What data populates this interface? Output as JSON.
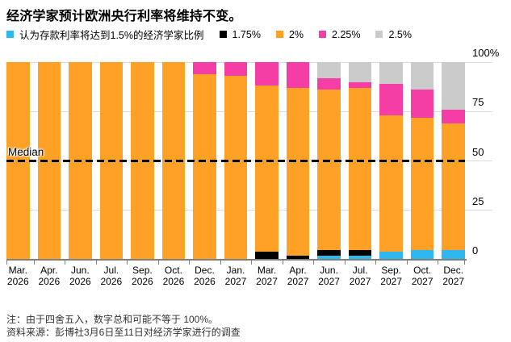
{
  "title": "经济学家预计欧洲央行利率将维持不变。",
  "legend": {
    "items": [
      {
        "name": "deposit-rate-1-5pct",
        "label": "认为存款利率将达到1.5%的经济学家比例",
        "color": "#2FB8F0"
      },
      {
        "name": "rate-1-75pct",
        "label": "1.75%",
        "color": "#000000"
      },
      {
        "name": "rate-2pct",
        "label": "2%",
        "color": "#FFA127"
      },
      {
        "name": "rate-2-25pct",
        "label": "2.25%",
        "color": "#F53EA5"
      },
      {
        "name": "rate-2-5pct",
        "label": "2.5%",
        "color": "#CBCBCB"
      }
    ]
  },
  "chart_data": {
    "type": "bar",
    "stacked": true,
    "title": "经济学家预计欧洲央行利率将维持不变。",
    "categories": [
      {
        "month": "Mar.",
        "year": "2026"
      },
      {
        "month": "Apr.",
        "year": "2026"
      },
      {
        "month": "Jun.",
        "year": "2026"
      },
      {
        "month": "Jul.",
        "year": "2026"
      },
      {
        "month": "Sep.",
        "year": "2026"
      },
      {
        "month": "Oct.",
        "year": "2026"
      },
      {
        "month": "Dec.",
        "year": "2026"
      },
      {
        "month": "Jan.",
        "year": "2027"
      },
      {
        "month": "Mar.",
        "year": "2027"
      },
      {
        "month": "Apr.",
        "year": "2027"
      },
      {
        "month": "Jun.",
        "year": "2027"
      },
      {
        "month": "Jul.",
        "year": "2027"
      },
      {
        "month": "Sep.",
        "year": "2027"
      },
      {
        "month": "Oct.",
        "year": "2027"
      },
      {
        "month": "Dec.",
        "year": "2027"
      }
    ],
    "series": [
      {
        "name": "认为存款利率将达到1.5%的经济学家比例",
        "color": "#2FB8F0",
        "values": [
          0,
          0,
          0,
          0,
          0,
          0,
          0,
          0,
          0,
          0,
          2,
          2,
          4,
          5,
          5
        ]
      },
      {
        "name": "1.75%",
        "color": "#000000",
        "values": [
          0,
          0,
          0,
          0,
          0,
          0,
          0,
          0,
          4,
          2,
          3,
          3,
          0,
          0,
          0
        ]
      },
      {
        "name": "2%",
        "color": "#FFA127",
        "values": [
          100,
          100,
          100,
          100,
          100,
          100,
          94,
          93,
          84,
          85,
          81,
          82,
          69,
          67,
          64
        ]
      },
      {
        "name": "2.25%",
        "color": "#F53EA5",
        "values": [
          0,
          0,
          0,
          0,
          0,
          0,
          6,
          7,
          12,
          13,
          6,
          3,
          16,
          14,
          7
        ]
      },
      {
        "name": "2.5%",
        "color": "#CBCBCB",
        "values": [
          0,
          0,
          0,
          0,
          0,
          0,
          0,
          0,
          0,
          0,
          8,
          10,
          11,
          14,
          24
        ]
      }
    ],
    "ylim": [
      0,
      100
    ],
    "yticks": [
      {
        "value": 100,
        "label": "100%"
      },
      {
        "value": 75,
        "label": "75"
      },
      {
        "value": 50,
        "label": "50"
      },
      {
        "value": 25,
        "label": "25"
      },
      {
        "value": 0,
        "label": "0"
      }
    ],
    "median_line": {
      "label": "Median",
      "value": 50
    },
    "grid": "horizontal",
    "legend_position": "top"
  },
  "footer": {
    "note": "注：由于四舍五入，数字总和可能不等于 100%。",
    "source": "资料来源：彭博社3月6日至11日对经济学家进行的调查"
  }
}
